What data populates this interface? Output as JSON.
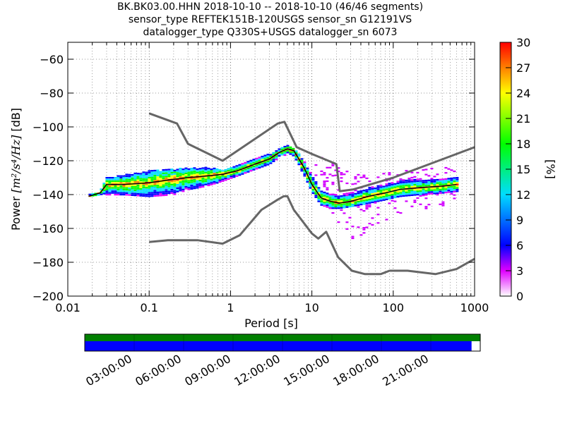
{
  "title_lines": [
    "BK.BK03.00.HHN   2018-10-10 -- 2018-10-10  (46/46 segments)",
    "sensor_type REFTEK151B-120USGS sensor_sn G12191VS",
    "datalogger_type Q330S+USGS datalogger_sn 6073"
  ],
  "chart_data": {
    "type": "heatmap",
    "xlabel": "Period [s]",
    "ylabel_prefix": "Power",
    "ylabel_units": "[m²/s⁴/Hz]",
    "ylabel_suffix": "[dB]",
    "xscale": "log",
    "xlim": [
      0.01,
      1000
    ],
    "ylim": [
      -200,
      -50
    ],
    "xticks": [
      0.01,
      0.1,
      1,
      10,
      100,
      1000
    ],
    "xtick_labels": [
      "0.01",
      "0.1",
      "1",
      "10",
      "100",
      "1000"
    ],
    "yticks": [
      -200,
      -180,
      -160,
      -140,
      -120,
      -100,
      -80,
      -60
    ],
    "ytick_labels": [
      "−200",
      "−180",
      "−160",
      "−140",
      "−120",
      "−100",
      "−80",
      "−60"
    ],
    "grid": true,
    "colorbar": {
      "label": "[%]",
      "range": [
        0,
        30
      ],
      "ticks": [
        "0",
        "3",
        "6",
        "9",
        "12",
        "15",
        "18",
        "21",
        "24",
        "27",
        "30"
      ]
    },
    "noise_models": {
      "high": [
        [
          0.1,
          -92
        ],
        [
          0.22,
          -98
        ],
        [
          0.3,
          -110
        ],
        [
          0.8,
          -120
        ],
        [
          3.8,
          -98
        ],
        [
          4.6,
          -97
        ],
        [
          6.5,
          -112
        ],
        [
          10,
          -116
        ],
        [
          20,
          -122
        ],
        [
          22,
          -138
        ],
        [
          32,
          -137
        ],
        [
          100,
          -130
        ],
        [
          1000,
          -112
        ]
      ],
      "low": [
        [
          0.1,
          -168
        ],
        [
          0.17,
          -167
        ],
        [
          0.4,
          -167
        ],
        [
          0.8,
          -169
        ],
        [
          1.3,
          -164
        ],
        [
          2.4,
          -149
        ],
        [
          3.8,
          -143
        ],
        [
          4.5,
          -141
        ],
        [
          5,
          -141
        ],
        [
          6,
          -149
        ],
        [
          10,
          -163
        ],
        [
          12,
          -166
        ],
        [
          15,
          -162
        ],
        [
          21,
          -177
        ],
        [
          31,
          -185
        ],
        [
          45,
          -187
        ],
        [
          70,
          -187
        ],
        [
          90,
          -185
        ],
        [
          150,
          -185
        ],
        [
          330,
          -187
        ],
        [
          600,
          -184
        ],
        [
          1000,
          -178
        ]
      ]
    },
    "mean_psd": [
      [
        0.018,
        -141
      ],
      [
        0.025,
        -139
      ],
      [
        0.03,
        -134
      ],
      [
        0.05,
        -134
      ],
      [
        0.1,
        -133
      ],
      [
        0.2,
        -131
      ],
      [
        0.3,
        -130
      ],
      [
        0.5,
        -129
      ],
      [
        0.8,
        -128
      ],
      [
        1.2,
        -126
      ],
      [
        2,
        -122
      ],
      [
        3,
        -119
      ],
      [
        4,
        -115
      ],
      [
        5,
        -113
      ],
      [
        6,
        -114
      ],
      [
        8,
        -124
      ],
      [
        10,
        -134
      ],
      [
        13,
        -142
      ],
      [
        17,
        -144
      ],
      [
        22,
        -145
      ],
      [
        30,
        -144
      ],
      [
        50,
        -141
      ],
      [
        80,
        -139
      ],
      [
        120,
        -137
      ],
      [
        200,
        -136
      ],
      [
        400,
        -135
      ],
      [
        600,
        -134
      ]
    ],
    "psd_band": [
      [
        0.018,
        -142,
        -140
      ],
      [
        0.025,
        -141,
        -138
      ],
      [
        0.03,
        -140,
        -130
      ],
      [
        0.05,
        -140,
        -128
      ],
      [
        0.1,
        -141,
        -126
      ],
      [
        0.2,
        -140,
        -125
      ],
      [
        0.3,
        -137,
        -124
      ],
      [
        0.5,
        -135,
        -124
      ],
      [
        0.8,
        -132,
        -125
      ],
      [
        1.2,
        -129,
        -123
      ],
      [
        2,
        -125,
        -119
      ],
      [
        3,
        -122,
        -116
      ],
      [
        4,
        -118,
        -113
      ],
      [
        5,
        -116,
        -111
      ],
      [
        6,
        -118,
        -112
      ],
      [
        8,
        -128,
        -120
      ],
      [
        10,
        -138,
        -128
      ],
      [
        13,
        -146,
        -138
      ],
      [
        17,
        -148,
        -140
      ],
      [
        22,
        -148,
        -140
      ],
      [
        30,
        -147,
        -139
      ],
      [
        50,
        -145,
        -136
      ],
      [
        80,
        -143,
        -134
      ],
      [
        120,
        -141,
        -132
      ],
      [
        200,
        -140,
        -131
      ],
      [
        400,
        -139,
        -131
      ],
      [
        600,
        -138,
        -130
      ]
    ],
    "scatter_band": [
      [
        11,
        -128,
        -122
      ],
      [
        13,
        -132,
        -118
      ],
      [
        16,
        -150,
        -120
      ],
      [
        20,
        -155,
        -122
      ],
      [
        25,
        -163,
        -125
      ],
      [
        30,
        -166,
        -127
      ],
      [
        40,
        -165,
        -128
      ],
      [
        55,
        -160,
        -128
      ],
      [
        80,
        -155,
        -127
      ],
      [
        120,
        -152,
        -126
      ],
      [
        200,
        -149,
        -125
      ],
      [
        350,
        -147,
        -124
      ],
      [
        600,
        -145,
        -124
      ]
    ]
  },
  "time_axis": {
    "tick_labels": [
      "03:00:00",
      "06:00:00",
      "09:00:00",
      "12:00:00",
      "15:00:00",
      "18:00:00",
      "21:00:00"
    ],
    "upper_bar": {
      "color": "#008000",
      "fraction": 1.0
    },
    "lower_bar": {
      "color": "#0000ff",
      "fraction": 0.978
    }
  }
}
